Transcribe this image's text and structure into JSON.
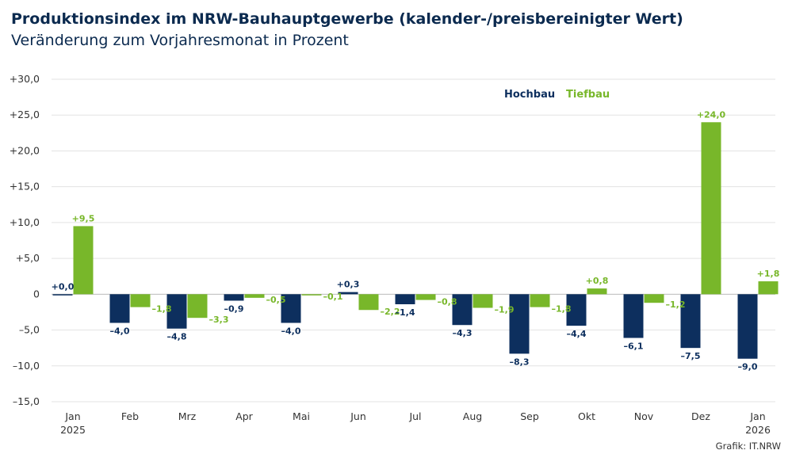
{
  "chart_data": {
    "type": "bar",
    "title": "Produktionsindex im NRW-Bauhauptgewerbe (kalender-/preisbereinigter Wert)",
    "subtitle": "Veränderung zum Vorjahresmonat in Prozent",
    "categories": [
      "Jan\n2025",
      "Feb",
      "Mrz",
      "Apr",
      "Mai",
      "Jun",
      "Jul",
      "Aug",
      "Sep",
      "Okt",
      "Nov",
      "Dez",
      "Jan\n2026"
    ],
    "series": [
      {
        "name": "Hochbau",
        "color": "#0d2f5e",
        "values": [
          0.0,
          -4.0,
          -4.8,
          -0.9,
          -4.0,
          0.3,
          -1.4,
          -4.3,
          -8.3,
          -4.4,
          -6.1,
          -7.5,
          -9.0
        ],
        "labels": [
          "+0,0",
          "–4,0",
          "–4,8",
          "–0,9",
          "–4,0",
          "+0,3",
          "–1,4",
          "–4,3",
          "–8,3",
          "–4,4",
          "–6,1",
          "–7,5",
          "–9,0"
        ]
      },
      {
        "name": "Tiefbau",
        "color": "#78b72a",
        "values": [
          9.5,
          -1.8,
          -3.3,
          -0.5,
          -0.1,
          -2.2,
          -0.8,
          -1.9,
          -1.8,
          0.8,
          -1.2,
          24.0,
          1.8
        ],
        "labels": [
          "+9,5",
          "–1,8",
          "–3,3",
          "–0,5",
          "–0,1",
          "–2,2",
          "–0,8",
          "–1,9",
          "–1,8",
          "+0,8",
          "–1,2",
          "+24,0",
          "+1,8"
        ]
      }
    ],
    "ylim": [
      -15,
      30
    ],
    "yticks": [
      30,
      25,
      20,
      15,
      10,
      5,
      0,
      -5,
      -10,
      -15
    ],
    "ytick_labels": [
      "+30,0",
      "+25,0",
      "+20,0",
      "+15,0",
      "+10,0",
      "+5,0",
      "0",
      "–5,0",
      "–10,0",
      "–15,0"
    ],
    "grid": true,
    "legend_position": "top-right",
    "source": "Grafik: IT.NRW"
  }
}
